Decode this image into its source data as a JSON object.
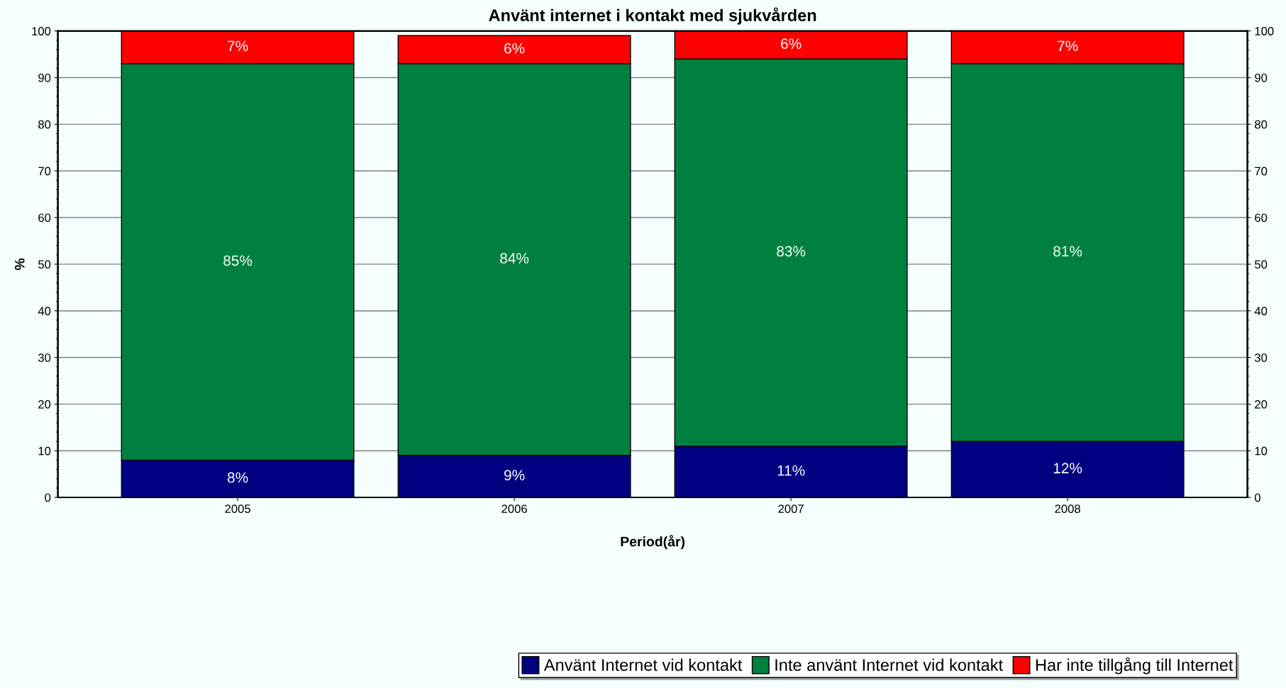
{
  "chart_data": {
    "type": "bar",
    "title": "Använt internet i kontakt med sjukvården",
    "xlabel": "Period(år)",
    "ylabel": "%",
    "categories": [
      "2005",
      "2006",
      "2007",
      "2008"
    ],
    "stacked": true,
    "series": [
      {
        "name": "Använt Internet vid kontakt",
        "color": "#000080",
        "values": [
          8,
          9,
          11,
          12
        ],
        "value_labels": [
          "8%",
          "9%",
          "11%",
          "12%"
        ]
      },
      {
        "name": "Inte använt Internet vid kontakt",
        "color": "#008040",
        "values": [
          85,
          84,
          83,
          81
        ],
        "value_labels": [
          "85%",
          "84%",
          "83%",
          "81%"
        ]
      },
      {
        "name": "Har inte tillgång till Internet",
        "color": "#ff0000",
        "values": [
          7,
          6,
          6,
          7
        ],
        "value_labels": [
          "7%",
          "6%",
          "6%",
          "7%"
        ]
      }
    ],
    "ylim": [
      0,
      100
    ],
    "yticks": [
      0,
      10,
      20,
      30,
      40,
      50,
      60,
      70,
      80,
      90,
      100
    ],
    "y2lim": [
      0,
      100
    ],
    "y2ticks": [
      0,
      10,
      20,
      30,
      40,
      50,
      60,
      70,
      80,
      90,
      100
    ],
    "grid": "y",
    "legend": "bottom right"
  }
}
